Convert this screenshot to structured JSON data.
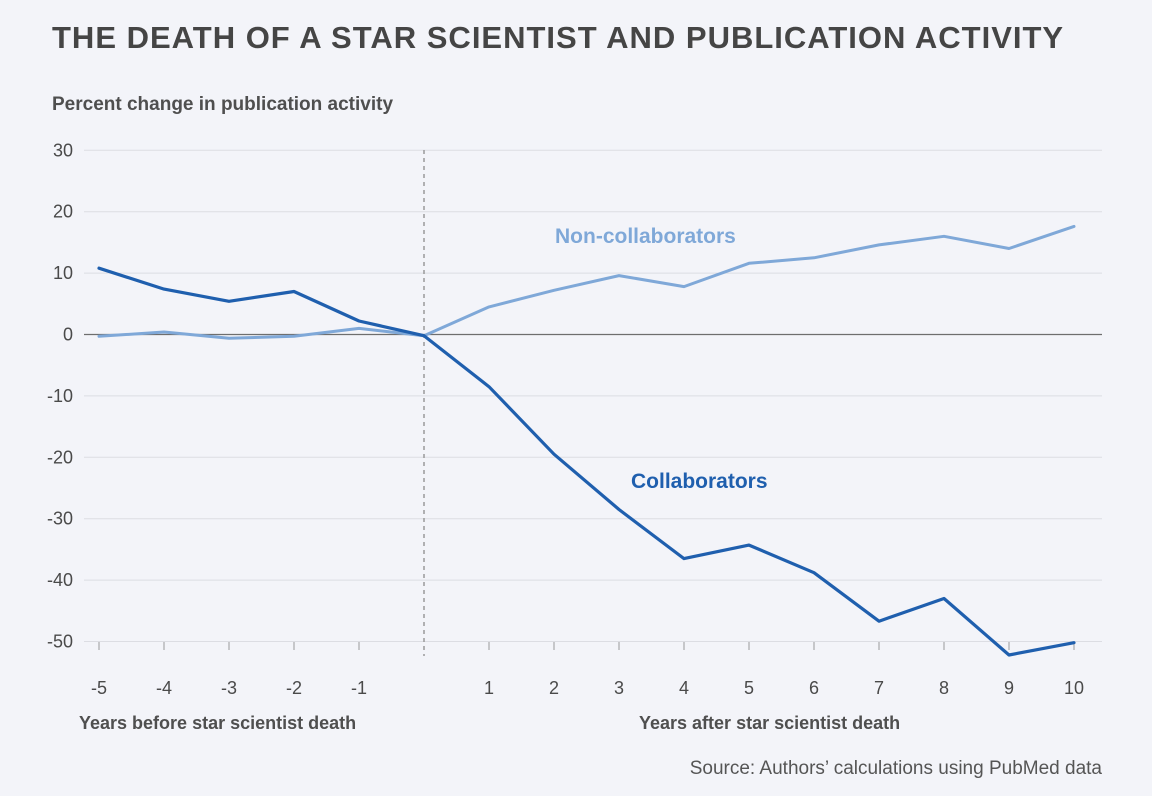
{
  "source": "Source: Authors’ calculations using PubMed data",
  "chart_data": {
    "type": "line",
    "title": "THE DEATH OF A STAR SCIENTIST AND PUBLICATION ACTIVITY",
    "ylabel": "Percent change in publication activity",
    "x_group_labels": [
      "Years before star scientist death",
      "Years after star scientist death"
    ],
    "x": [
      -5,
      -4,
      -3,
      -2,
      -1,
      0,
      1,
      2,
      3,
      4,
      5,
      6,
      7,
      8,
      9,
      10
    ],
    "x_tick_labels": [
      "-5",
      "-4",
      "-3",
      "-2",
      "-1",
      "",
      "1",
      "2",
      "3",
      "4",
      "5",
      "6",
      "7",
      "8",
      "9",
      "10"
    ],
    "ylim": [
      -52,
      30
    ],
    "yticks": [
      30,
      20,
      10,
      0,
      -10,
      -20,
      -30,
      -40,
      -50
    ],
    "grid": true,
    "event_line_x": 0,
    "series": [
      {
        "name": "Non-collaborators",
        "color": "#7fa8d8",
        "values": [
          -0.3,
          0.4,
          -0.6,
          -0.3,
          1.0,
          -0.2,
          4.5,
          7.2,
          9.6,
          7.8,
          11.6,
          12.5,
          14.6,
          16.0,
          14.0,
          17.6
        ]
      },
      {
        "name": "Collaborators",
        "color": "#1f5fae",
        "values": [
          10.8,
          7.4,
          5.4,
          7.0,
          2.2,
          -0.2,
          -8.5,
          -19.5,
          -28.5,
          -36.5,
          -34.3,
          -38.8,
          -46.7,
          -43.0,
          -52.2,
          -50.2
        ]
      }
    ]
  }
}
